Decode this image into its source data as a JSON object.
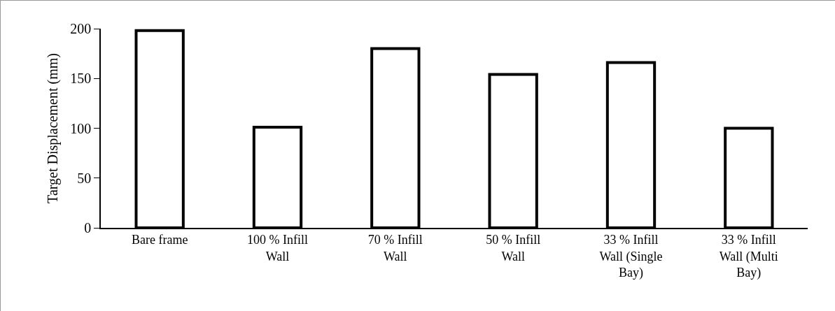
{
  "chart_data": {
    "type": "bar",
    "ylabel": "Target Displacement (mm)",
    "categories": [
      "Bare frame",
      "100 % Infill Wall",
      "70 % Infill Wall",
      "50 % Infill Wall",
      "33 % Infill Wall (Single Bay)",
      "33 % Infill Wall (Multi Bay)"
    ],
    "values": [
      198,
      101,
      180,
      154,
      166,
      100
    ],
    "color": "#ffffff",
    "ylim": [
      0,
      200
    ],
    "yticks": [
      0,
      50,
      100,
      150,
      200
    ],
    "grid": false
  }
}
